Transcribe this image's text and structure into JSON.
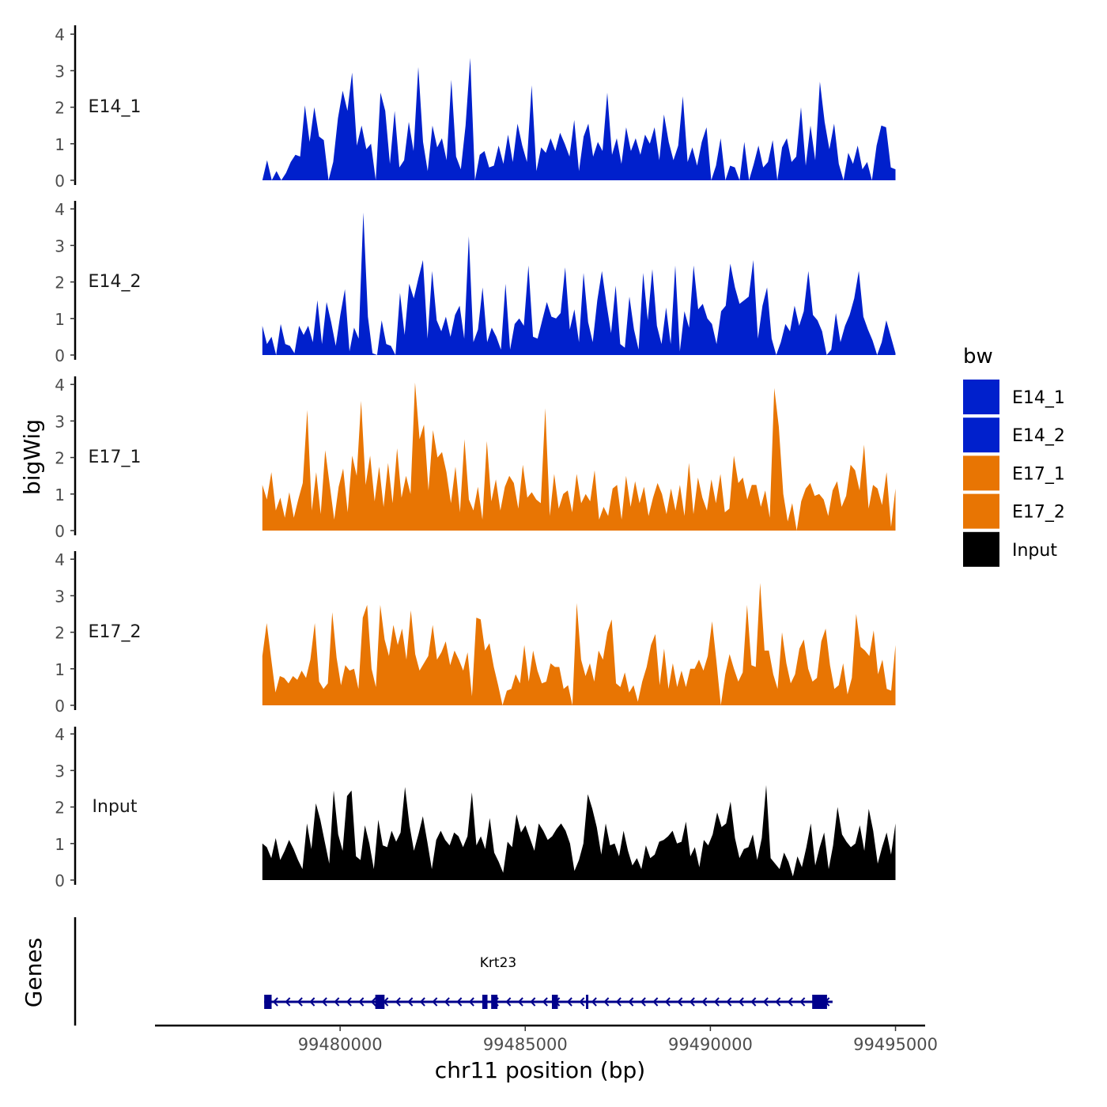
{
  "chart_data": {
    "type": "area",
    "ylabel": "bigWig",
    "xlabel": "chr11 position (bp)",
    "x_range": [
      99477900,
      99495000
    ],
    "x_axis_limits": [
      99475000,
      99495800
    ],
    "x_ticks": [
      99480000,
      99485000,
      99490000,
      99495000
    ],
    "x_tick_labels": [
      "99480000",
      "99485000",
      "99490000",
      "99495000"
    ],
    "y_ticks": [
      0,
      1,
      2,
      3,
      4
    ],
    "y_tick_labels": [
      "0",
      "1",
      "2",
      "3",
      "4"
    ],
    "ylim": [
      0,
      4.3
    ],
    "legend": {
      "title": "bw",
      "position": "right",
      "entries": [
        {
          "label": "E14_1",
          "color": "#0020CC"
        },
        {
          "label": "E14_2",
          "color": "#0020CC"
        },
        {
          "label": "E17_1",
          "color": "#E87503"
        },
        {
          "label": "E17_2",
          "color": "#E87503"
        },
        {
          "label": "Input",
          "color": "#000000"
        }
      ]
    },
    "tracks": [
      {
        "name": "E14_1",
        "color": "#0020CC",
        "values": [
          0.0,
          0.55,
          0.0,
          0.25,
          0.0,
          0.2,
          0.5,
          0.7,
          0.65,
          2.05,
          1.05,
          2.0,
          1.2,
          1.1,
          0.0,
          0.5,
          1.7,
          2.45,
          1.9,
          2.95,
          0.95,
          1.5,
          0.85,
          1.0,
          0.0,
          2.4,
          1.9,
          0.45,
          1.9,
          0.35,
          0.55,
          1.6,
          0.8,
          3.1,
          1.05,
          0.25,
          1.5,
          0.9,
          1.15,
          0.55,
          2.75,
          0.65,
          0.3,
          1.5,
          3.35,
          0.0,
          0.7,
          0.8,
          0.35,
          0.4,
          0.95,
          0.45,
          1.25,
          0.5,
          1.55,
          0.95,
          0.5,
          2.6,
          0.25,
          0.9,
          0.75,
          1.15,
          0.8,
          1.3,
          1.0,
          0.65,
          1.65,
          0.25,
          1.2,
          1.55,
          0.65,
          1.05,
          0.8,
          2.4,
          0.7,
          1.15,
          0.45,
          1.45,
          0.8,
          1.15,
          0.7,
          1.25,
          1.0,
          1.45,
          0.55,
          1.8,
          1.05,
          0.55,
          0.95,
          2.3,
          0.5,
          0.9,
          0.4,
          1.05,
          1.45,
          0.0,
          0.4,
          1.15,
          0.0,
          0.4,
          0.35,
          0.0,
          1.05,
          0.0,
          0.45,
          0.95,
          0.35,
          0.5,
          1.1,
          0.0,
          0.9,
          1.15,
          0.5,
          0.65,
          2.0,
          0.4,
          1.5,
          0.55,
          2.7,
          1.6,
          0.85,
          1.55,
          0.45,
          0.0,
          0.75,
          0.45,
          0.95,
          0.3,
          0.5,
          0.0,
          0.95,
          1.5,
          1.45,
          0.35,
          0.3
        ]
      },
      {
        "name": "E14_2",
        "color": "#0020CC",
        "values": [
          0.8,
          0.3,
          0.5,
          0.0,
          0.85,
          0.3,
          0.25,
          0.05,
          0.8,
          0.55,
          0.8,
          0.35,
          1.5,
          0.3,
          1.45,
          0.9,
          0.25,
          1.1,
          1.8,
          0.1,
          0.75,
          0.45,
          3.9,
          1.05,
          0.05,
          0.0,
          0.95,
          0.3,
          0.25,
          0.0,
          1.7,
          0.55,
          1.95,
          1.55,
          2.1,
          2.6,
          0.45,
          2.3,
          0.95,
          0.65,
          1.05,
          0.5,
          1.1,
          1.35,
          0.45,
          3.25,
          0.35,
          0.7,
          1.85,
          0.35,
          0.75,
          0.5,
          0.15,
          1.95,
          0.15,
          0.85,
          1.0,
          0.8,
          2.45,
          0.5,
          0.45,
          0.95,
          1.45,
          1.05,
          1.0,
          1.15,
          2.4,
          0.7,
          1.25,
          0.35,
          2.25,
          0.9,
          0.35,
          1.5,
          2.3,
          1.4,
          0.6,
          1.9,
          0.3,
          0.2,
          1.6,
          0.7,
          0.15,
          2.25,
          0.95,
          2.35,
          0.8,
          0.3,
          1.3,
          0.3,
          2.45,
          0.1,
          1.2,
          0.75,
          2.45,
          1.25,
          1.4,
          1.0,
          0.85,
          0.3,
          1.2,
          1.35,
          2.5,
          1.85,
          1.4,
          1.5,
          1.6,
          2.6,
          0.45,
          1.35,
          1.85,
          0.45,
          0.0,
          0.35,
          0.85,
          0.65,
          1.35,
          0.8,
          1.2,
          2.3,
          1.1,
          0.95,
          0.65,
          0.0,
          0.15,
          1.15,
          0.35,
          0.8,
          1.1,
          1.55,
          2.3,
          1.05,
          0.7,
          0.4,
          0.0,
          0.35,
          0.95,
          0.5,
          0.05
        ]
      },
      {
        "name": "E17_1",
        "color": "#E87503",
        "values": [
          1.25,
          0.85,
          1.6,
          0.55,
          0.9,
          0.35,
          1.05,
          0.35,
          0.85,
          1.3,
          3.3,
          0.55,
          1.6,
          0.45,
          2.2,
          1.25,
          0.3,
          1.2,
          1.7,
          0.5,
          2.05,
          1.5,
          3.55,
          1.25,
          2.05,
          0.8,
          1.75,
          0.65,
          1.85,
          0.75,
          2.25,
          0.9,
          1.5,
          1.0,
          4.05,
          2.5,
          2.9,
          1.1,
          2.75,
          2.0,
          2.15,
          1.6,
          0.75,
          1.75,
          0.5,
          2.5,
          0.85,
          0.55,
          1.2,
          0.3,
          2.45,
          0.8,
          1.4,
          0.55,
          1.2,
          1.5,
          1.3,
          0.6,
          1.8,
          0.9,
          1.05,
          0.85,
          0.75,
          3.35,
          0.4,
          1.55,
          0.6,
          1.0,
          1.1,
          0.5,
          1.55,
          0.75,
          1.0,
          0.8,
          1.65,
          0.3,
          0.65,
          0.4,
          1.15,
          1.25,
          0.3,
          1.5,
          0.65,
          1.35,
          0.75,
          1.2,
          0.4,
          0.9,
          1.3,
          1.0,
          0.45,
          1.15,
          0.55,
          1.25,
          0.4,
          1.85,
          0.45,
          1.45,
          0.9,
          0.55,
          1.4,
          0.75,
          1.55,
          0.5,
          0.6,
          2.05,
          1.3,
          1.45,
          0.85,
          1.25,
          1.25,
          0.65,
          1.1,
          0.35,
          3.9,
          2.85,
          1.0,
          0.25,
          0.75,
          0.0,
          0.8,
          1.15,
          1.3,
          0.95,
          1.0,
          0.85,
          0.4,
          1.1,
          1.35,
          0.65,
          0.95,
          1.8,
          1.65,
          1.1,
          2.35,
          0.6,
          1.25,
          1.15,
          0.7,
          1.6,
          0.1,
          1.15
        ]
      },
      {
        "name": "E17_2",
        "color": "#E87503",
        "values": [
          1.35,
          2.25,
          1.3,
          0.35,
          0.8,
          0.75,
          0.6,
          0.8,
          0.7,
          0.95,
          0.75,
          1.25,
          2.25,
          0.65,
          0.45,
          0.6,
          2.55,
          1.3,
          0.55,
          1.1,
          0.95,
          1.0,
          0.45,
          2.4,
          2.75,
          1.0,
          0.5,
          2.75,
          1.8,
          1.35,
          2.2,
          1.65,
          2.1,
          1.25,
          2.6,
          1.4,
          0.95,
          1.15,
          1.35,
          2.2,
          1.25,
          1.45,
          1.75,
          1.1,
          1.5,
          1.25,
          0.95,
          1.45,
          0.25,
          2.4,
          2.35,
          1.5,
          1.7,
          1.05,
          0.55,
          0.0,
          0.4,
          0.45,
          0.85,
          0.6,
          1.65,
          0.65,
          1.5,
          0.95,
          0.6,
          0.65,
          1.15,
          1.05,
          1.05,
          0.45,
          0.55,
          0.0,
          2.8,
          1.25,
          0.8,
          1.15,
          0.65,
          1.5,
          1.25,
          2.0,
          2.35,
          0.6,
          0.5,
          0.9,
          0.35,
          0.55,
          0.1,
          0.65,
          1.05,
          1.65,
          1.95,
          0.55,
          1.55,
          0.45,
          1.15,
          0.5,
          0.95,
          0.5,
          1.0,
          1.0,
          1.25,
          0.95,
          1.35,
          2.3,
          1.2,
          0.0,
          0.85,
          1.4,
          1.0,
          0.65,
          0.9,
          2.75,
          1.1,
          1.05,
          3.35,
          1.5,
          1.5,
          0.85,
          0.45,
          2.0,
          1.15,
          0.6,
          0.85,
          1.55,
          1.8,
          1.0,
          0.65,
          0.75,
          1.75,
          2.1,
          1.1,
          0.45,
          0.55,
          1.15,
          0.3,
          0.75,
          2.5,
          1.6,
          1.5,
          1.35,
          2.05,
          0.85,
          1.25,
          0.45,
          0.4,
          1.65
        ]
      },
      {
        "name": "Input",
        "color": "#000000",
        "values": [
          1.0,
          0.9,
          0.6,
          1.15,
          0.55,
          0.8,
          1.1,
          0.85,
          0.55,
          0.3,
          1.55,
          0.85,
          2.1,
          1.65,
          1.05,
          0.45,
          2.45,
          1.25,
          0.8,
          2.3,
          2.45,
          0.65,
          0.55,
          1.5,
          1.0,
          0.3,
          1.65,
          0.95,
          0.9,
          1.35,
          1.05,
          1.3,
          2.55,
          1.5,
          0.8,
          1.25,
          1.75,
          1.05,
          0.3,
          1.1,
          1.35,
          1.1,
          0.95,
          1.3,
          1.2,
          0.9,
          1.2,
          2.4,
          0.95,
          1.2,
          0.85,
          1.7,
          0.75,
          0.5,
          0.2,
          1.05,
          0.9,
          1.8,
          1.3,
          1.5,
          1.15,
          0.8,
          1.55,
          1.35,
          1.1,
          1.2,
          1.4,
          1.55,
          1.35,
          1.0,
          0.25,
          0.55,
          1.0,
          2.35,
          1.95,
          1.45,
          0.7,
          1.55,
          0.95,
          1.0,
          0.65,
          1.35,
          0.8,
          0.4,
          0.6,
          0.3,
          0.95,
          0.6,
          0.7,
          1.05,
          1.1,
          1.2,
          1.35,
          1.0,
          1.05,
          1.6,
          0.65,
          0.9,
          0.35,
          1.1,
          0.95,
          1.25,
          1.85,
          1.45,
          1.55,
          2.15,
          1.15,
          0.6,
          0.85,
          0.9,
          1.25,
          0.55,
          1.15,
          2.6,
          0.6,
          0.45,
          0.3,
          0.75,
          0.5,
          0.1,
          0.65,
          0.35,
          0.9,
          1.55,
          0.4,
          0.9,
          1.3,
          0.3,
          0.95,
          2.0,
          1.25,
          1.05,
          0.9,
          1.0,
          1.5,
          0.8,
          1.95,
          1.35,
          0.45,
          0.9,
          1.3,
          0.7,
          1.55
        ]
      }
    ],
    "genes": [
      {
        "name": "Krt23",
        "start": 99477950,
        "end": 99493300,
        "strand": "-",
        "exons": [
          [
            99477950,
            99478150
          ],
          [
            99480950,
            99481200
          ],
          [
            99483840,
            99483980
          ],
          [
            99484080,
            99484250
          ],
          [
            99485720,
            99485880
          ],
          [
            99486640,
            99486700
          ],
          [
            99492750,
            99493150
          ]
        ]
      }
    ],
    "gene_track_label": "Genes"
  }
}
